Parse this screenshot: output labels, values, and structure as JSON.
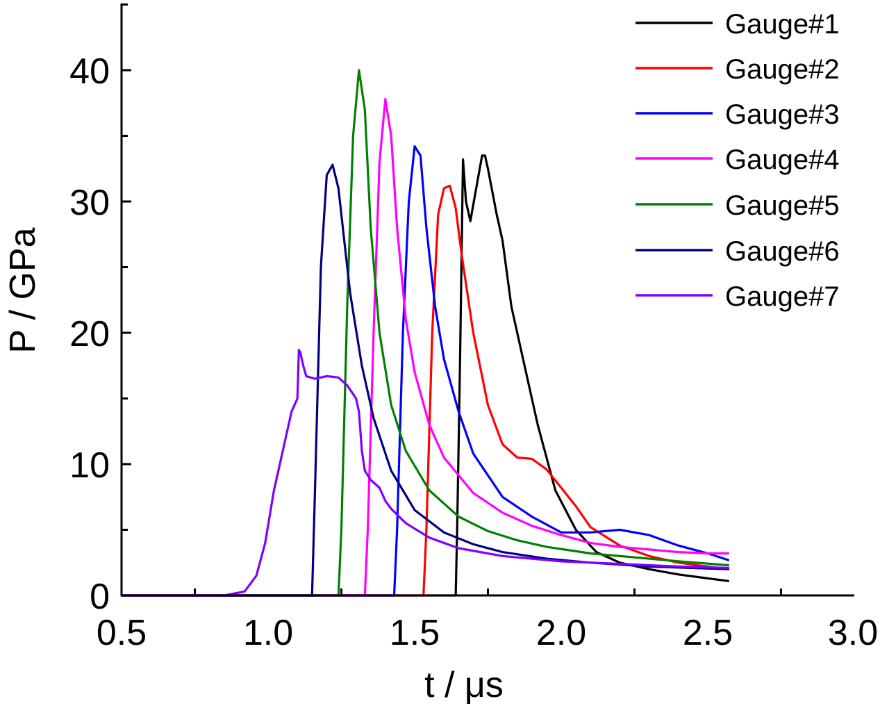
{
  "chart_data": {
    "type": "line",
    "title": "",
    "xlabel": "t / μs",
    "ylabel": "P / GPa",
    "xlim": [
      0.5,
      3.0
    ],
    "ylim": [
      0,
      45
    ],
    "xticks": [
      "0.5",
      "1.0",
      "1.5",
      "2.0",
      "2.5",
      "3.0"
    ],
    "yticks": [
      "0",
      "10",
      "20",
      "30",
      "40"
    ],
    "grid": false,
    "legend_position": "top-right",
    "series": [
      {
        "name": "Gauge#1",
        "color": "#000000",
        "x": [
          0.5,
          1.64,
          1.645,
          1.655,
          1.665,
          1.675,
          1.69,
          1.71,
          1.73,
          1.74,
          1.75,
          1.78,
          1.8,
          1.83,
          1.87,
          1.92,
          1.98,
          2.05,
          2.12,
          2.2,
          2.3,
          2.4,
          2.5,
          2.57
        ],
        "y": [
          0,
          0,
          5,
          18,
          33.2,
          30,
          28.5,
          31,
          33.5,
          33.5,
          32.5,
          29,
          27,
          22,
          18,
          13,
          8,
          5,
          3.3,
          2.5,
          2.0,
          1.6,
          1.3,
          1.1
        ]
      },
      {
        "name": "Gauge#2",
        "color": "#ff0000",
        "x": [
          0.5,
          1.53,
          1.54,
          1.56,
          1.58,
          1.6,
          1.62,
          1.64,
          1.66,
          1.7,
          1.75,
          1.8,
          1.85,
          1.9,
          1.95,
          2.0,
          2.05,
          2.1,
          2.2,
          2.3,
          2.4,
          2.5,
          2.57
        ],
        "y": [
          0,
          0,
          5,
          20,
          29,
          31,
          31.2,
          29.5,
          26,
          20,
          14.5,
          11.5,
          10.5,
          10.4,
          9.6,
          8.2,
          6.8,
          5.2,
          3.8,
          3.0,
          2.5,
          2.2,
          2.0
        ]
      },
      {
        "name": "Gauge#3",
        "color": "#0000ff",
        "x": [
          0.5,
          1.43,
          1.44,
          1.46,
          1.48,
          1.5,
          1.52,
          1.54,
          1.57,
          1.6,
          1.65,
          1.7,
          1.8,
          1.9,
          2.0,
          2.1,
          2.2,
          2.3,
          2.4,
          2.5,
          2.57
        ],
        "y": [
          0,
          0,
          5,
          20,
          30,
          34.2,
          33.5,
          28,
          22,
          18,
          14,
          10.8,
          7.5,
          6.0,
          4.8,
          4.8,
          5.0,
          4.6,
          3.8,
          3.2,
          2.7
        ]
      },
      {
        "name": "Gauge#4",
        "color": "#ff00ff",
        "x": [
          0.5,
          1.33,
          1.34,
          1.36,
          1.38,
          1.4,
          1.42,
          1.44,
          1.47,
          1.5,
          1.55,
          1.6,
          1.7,
          1.8,
          1.9,
          2.0,
          2.1,
          2.2,
          2.3,
          2.4,
          2.5,
          2.57
        ],
        "y": [
          0,
          0,
          5,
          20,
          33,
          37.8,
          35,
          28,
          21,
          17,
          13,
          10.5,
          7.8,
          6.3,
          5.3,
          4.6,
          4.0,
          3.7,
          3.5,
          3.3,
          3.2,
          3.2
        ]
      },
      {
        "name": "Gauge#5",
        "color": "#008000",
        "x": [
          0.5,
          1.24,
          1.25,
          1.27,
          1.29,
          1.31,
          1.33,
          1.35,
          1.38,
          1.42,
          1.47,
          1.55,
          1.65,
          1.75,
          1.85,
          1.95,
          2.1,
          2.25,
          2.4,
          2.57
        ],
        "y": [
          0,
          0,
          5,
          22,
          35,
          40,
          37,
          28,
          20,
          14.5,
          11,
          8,
          6,
          4.9,
          4.2,
          3.7,
          3.2,
          2.9,
          2.6,
          2.3
        ]
      },
      {
        "name": "Gauge#6",
        "color": "#000080",
        "x": [
          0.5,
          1.15,
          1.16,
          1.18,
          1.2,
          1.22,
          1.24,
          1.26,
          1.28,
          1.32,
          1.36,
          1.42,
          1.5,
          1.6,
          1.7,
          1.8,
          1.95,
          2.1,
          2.3,
          2.57
        ],
        "y": [
          0,
          0,
          8,
          25,
          32,
          32.8,
          31,
          27,
          23,
          17.5,
          13.5,
          9.5,
          6.5,
          4.8,
          3.9,
          3.3,
          2.8,
          2.5,
          2.2,
          2.0
        ]
      },
      {
        "name": "Gauge#7",
        "color": "#8000ff",
        "x": [
          0.5,
          0.85,
          0.92,
          0.96,
          0.99,
          1.02,
          1.04,
          1.06,
          1.08,
          1.1,
          1.105,
          1.11,
          1.12,
          1.13,
          1.16,
          1.2,
          1.24,
          1.27,
          1.3,
          1.31,
          1.32,
          1.33,
          1.35,
          1.38,
          1.4,
          1.42,
          1.47,
          1.55,
          1.65,
          1.8,
          2.0,
          2.2,
          2.4,
          2.57
        ],
        "y": [
          0,
          0,
          0.3,
          1.5,
          4,
          8,
          10,
          12,
          14,
          15,
          18.7,
          18.5,
          17.5,
          16.7,
          16.5,
          16.7,
          16.6,
          16,
          15,
          14,
          11,
          9.5,
          8.8,
          8.2,
          7.2,
          6.6,
          5.5,
          4.4,
          3.6,
          3.0,
          2.6,
          2.4,
          2.2,
          2.1
        ]
      }
    ]
  }
}
